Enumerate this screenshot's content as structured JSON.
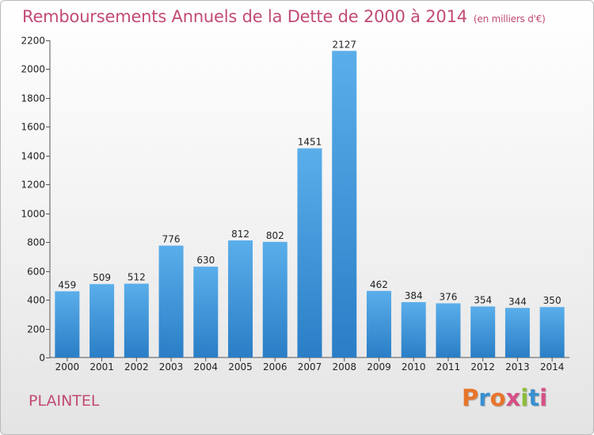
{
  "title": "Remboursements Annuels de la Dette de 2000 à 2014",
  "unit": "(en milliers d'€)",
  "commune": "PLAINTEL",
  "logo": {
    "text": "Proxiti",
    "colors": [
      "#e8742b",
      "#3a8fd0",
      "#e8742b",
      "#d64f86",
      "#8cbd3a",
      "#3a8fd0",
      "#d64f86"
    ]
  },
  "colors": {
    "title": "#c24a77",
    "bar_top": "#5aaeea",
    "bar_bottom": "#2a7ec6"
  },
  "chart_data": {
    "type": "bar",
    "categories": [
      "2000",
      "2001",
      "2002",
      "2003",
      "2004",
      "2005",
      "2006",
      "2007",
      "2008",
      "2009",
      "2010",
      "2011",
      "2012",
      "2013",
      "2014"
    ],
    "values": [
      459,
      509,
      512,
      776,
      630,
      812,
      802,
      1451,
      2127,
      462,
      384,
      376,
      354,
      344,
      350
    ],
    "title": "Remboursements Annuels de la Dette de 2000 à 2014",
    "ylim": [
      0,
      2200
    ],
    "yticks": [
      0,
      200,
      400,
      600,
      800,
      1000,
      1200,
      1400,
      1600,
      1800,
      2000,
      2200
    ],
    "grid": false,
    "data_labels": true
  }
}
